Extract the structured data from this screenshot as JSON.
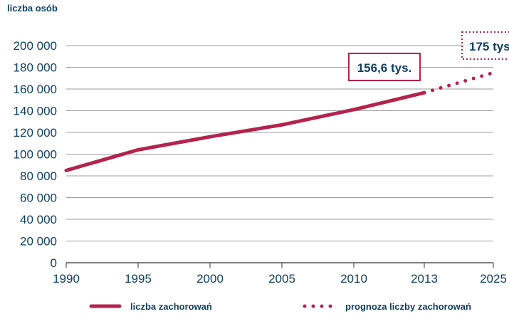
{
  "chart_data": {
    "type": "line",
    "ylabel": "liczba osób",
    "xlabel": "",
    "ylim": [
      0,
      200000
    ],
    "y_ticks": [
      "0",
      "20 000",
      "40 000",
      "60 000",
      "80 000",
      "100 000",
      "120 000",
      "140 000",
      "160 000",
      "180 000",
      "200 000"
    ],
    "x_ticks": [
      "1990",
      "1995",
      "2000",
      "2005",
      "2010",
      "2013",
      "2025"
    ],
    "grid": true,
    "legend_position": "bottom",
    "series": [
      {
        "name": "liczba zachorowań",
        "style": "solid",
        "color": "#b5234c",
        "x": [
          "1990",
          "1995",
          "2000",
          "2005",
          "2010",
          "2013"
        ],
        "y": [
          85000,
          104000,
          116000,
          127000,
          141000,
          156600
        ]
      },
      {
        "name": "prognoza liczby zachorowań",
        "style": "dotted",
        "color": "#b5234c",
        "x": [
          "2013",
          "2025"
        ],
        "y": [
          156600,
          175000
        ]
      }
    ],
    "annotations": [
      {
        "text": "156,6 tys.",
        "x": "2013",
        "y": 156600,
        "border": "solid"
      },
      {
        "text": "175 tys",
        "x": "2025",
        "y": 175000,
        "border": "dotted"
      }
    ]
  }
}
